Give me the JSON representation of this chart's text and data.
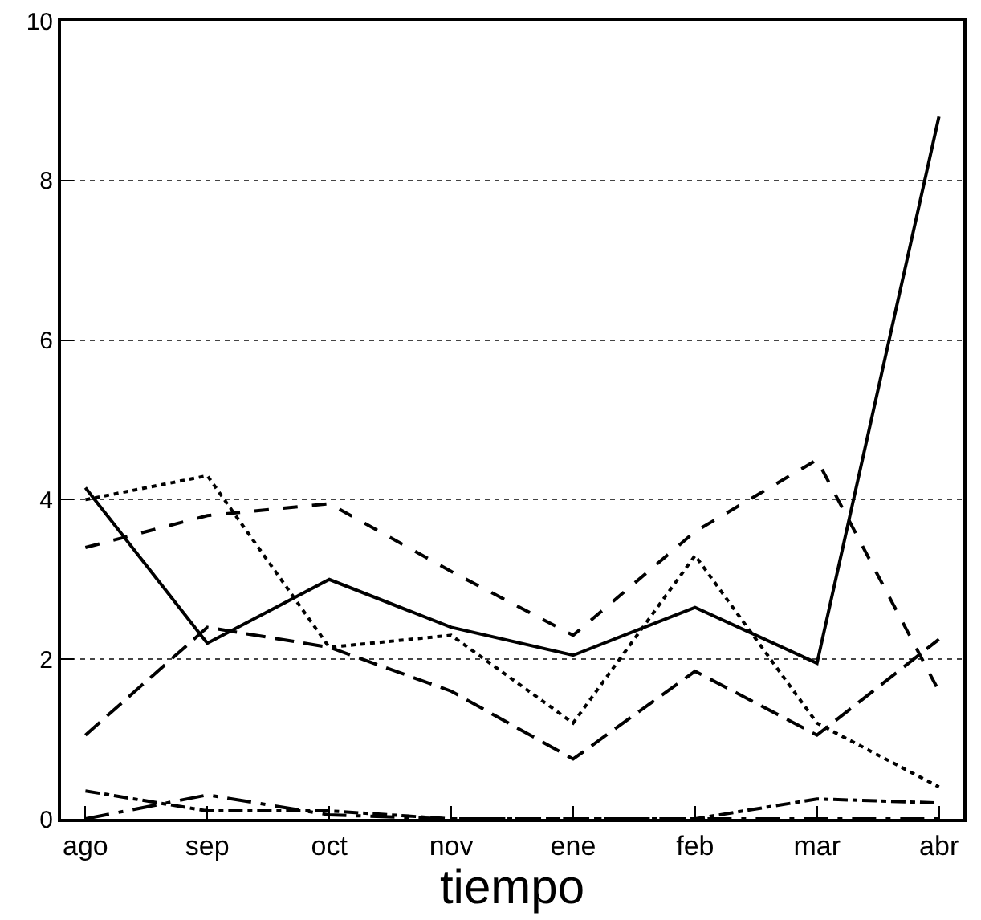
{
  "chart_data": {
    "type": "line",
    "xlabel": "tiempo",
    "categories": [
      "ago",
      "sep",
      "oct",
      "nov",
      "ene",
      "feb",
      "mar",
      "abr"
    ],
    "series": [
      {
        "color": "#000000",
        "line_style": "solid",
        "values": [
          4.15,
          2.2,
          3.0,
          2.4,
          2.05,
          2.65,
          1.95,
          8.8
        ]
      },
      {
        "color": "#000000",
        "line_style": "dashed",
        "values": [
          3.4,
          3.8,
          3.95,
          3.1,
          2.3,
          3.6,
          4.5,
          1.6
        ]
      },
      {
        "color": "#000000",
        "line_style": "dotted",
        "values": [
          4.0,
          4.3,
          2.15,
          2.3,
          1.2,
          3.3,
          1.2,
          0.4
        ]
      },
      {
        "color": "#000000",
        "line_style": "dashed",
        "values": [
          1.05,
          2.4,
          2.15,
          1.6,
          0.75,
          1.85,
          1.05,
          2.25
        ]
      },
      {
        "color": "#000000",
        "line_style": "dashed",
        "values": [
          0.35,
          0.1,
          0.1,
          0.0,
          0.0,
          0.0,
          0.25,
          0.2
        ]
      },
      {
        "color": "#000000",
        "line_style": "dashed",
        "values": [
          0.0,
          0.3,
          0.05,
          0.0,
          0.0,
          0.0,
          0.0,
          0.0
        ]
      }
    ],
    "ylim": [
      0,
      10
    ],
    "yticks": [
      0,
      2,
      4,
      6,
      8,
      10
    ],
    "grid": "y",
    "marker": "none"
  }
}
